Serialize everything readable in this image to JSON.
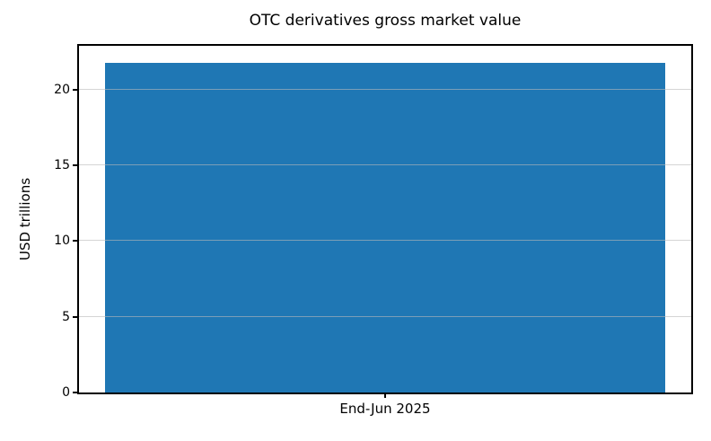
{
  "title": "OTC derivatives gross market value",
  "colors": {
    "bar": "#1f77b4",
    "grid": "rgba(185,185,185,0.6)",
    "axis": "#000000",
    "background": "#ffffff"
  },
  "chart_data": {
    "type": "bar",
    "categories": [
      "End-Jun 2025"
    ],
    "values": [
      21.8
    ],
    "title": "OTC derivatives gross market value",
    "xlabel": "",
    "ylabel": "USD trillions",
    "ylim": [
      0,
      22.9
    ],
    "yticks": [
      0,
      5,
      10,
      15,
      20
    ],
    "grid": "horizontal",
    "legend": "none",
    "bar_color": "#1f77b4"
  }
}
